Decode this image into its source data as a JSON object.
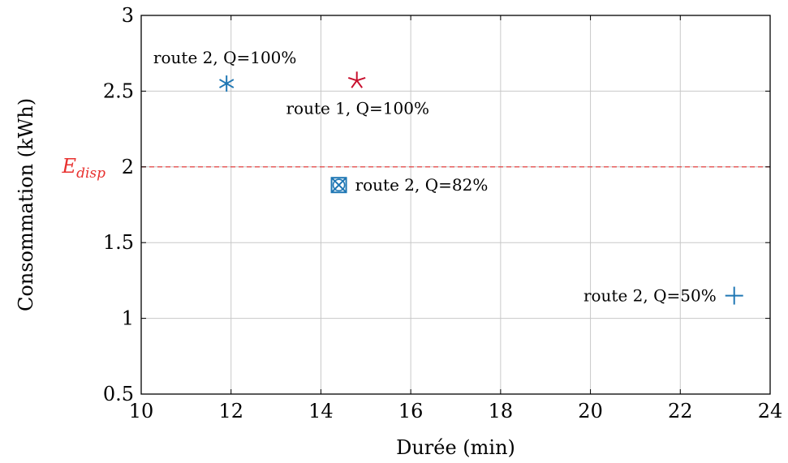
{
  "chart_data": {
    "type": "scatter",
    "title": "",
    "xlabel": "Durée (min)",
    "ylabel": "Consommation (kWh)",
    "xlim": [
      10,
      24
    ],
    "ylim": [
      0.5,
      3
    ],
    "x_ticks": [
      10,
      12,
      14,
      16,
      18,
      20,
      22,
      24
    ],
    "y_ticks": [
      0.5,
      1,
      1.5,
      2,
      2.5,
      3
    ],
    "grid": true,
    "reference_line": {
      "y": 2,
      "label_main": "E",
      "label_sub": "disp",
      "color": "#e8312f",
      "style": "dashed"
    },
    "points": [
      {
        "x": 11.9,
        "y": 2.55,
        "label": "route 2, Q=100%",
        "marker": "asterisk",
        "color": "#1f77b4",
        "label_side": "above"
      },
      {
        "x": 14.8,
        "y": 2.57,
        "label": "route 1, Q=100%",
        "marker": "star",
        "color": "#c8102e",
        "label_side": "below"
      },
      {
        "x": 14.4,
        "y": 1.88,
        "label": "route 2, Q=82%",
        "marker": "boxed-x",
        "color": "#1f77b4",
        "label_side": "right"
      },
      {
        "x": 23.2,
        "y": 1.15,
        "label": "route 2, Q=50%",
        "marker": "plus",
        "color": "#1f77b4",
        "label_side": "left"
      }
    ]
  }
}
